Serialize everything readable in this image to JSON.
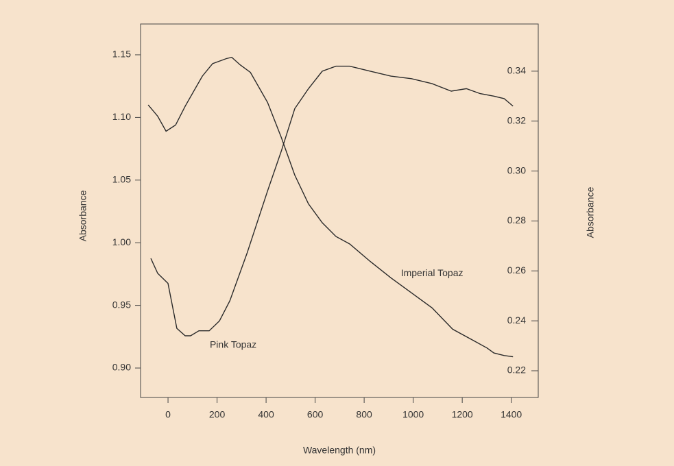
{
  "chart_data": {
    "type": "line",
    "xlabel": "Wavelength (nm)",
    "ylabel": "Absorbance",
    "y2label": "Absorbance",
    "xlim": [
      -112,
      1510
    ],
    "xticks": [
      0,
      200,
      400,
      600,
      800,
      1000,
      1200,
      1400
    ],
    "ylim": [
      0.8765,
      1.1746
    ],
    "yticks": [
      {
        "value": 0.9,
        "label": "0.90"
      },
      0.95,
      {
        "value": 1.0,
        "label": "1.00"
      },
      1.05,
      {
        "value": 1.1,
        "label": "1.10"
      },
      1.15
    ],
    "y2lim": [
      0.2093,
      0.3589
    ],
    "y2ticks": [
      0.22,
      0.24,
      0.26,
      0.28,
      {
        "value": 0.3,
        "label": "0.30"
      },
      0.32,
      0.34
    ],
    "series": [
      {
        "name": "Imperial Topaz",
        "color": "#2a2a2a",
        "axis": "y",
        "x": [
          -81,
          -42,
          -8,
          31,
          70,
          140,
          182,
          238,
          260,
          294,
          336,
          406,
          462,
          517,
          573,
          629,
          685,
          741,
          825,
          909,
          993,
          1077,
          1161,
          1245,
          1301,
          1329,
          1371,
          1407
        ],
        "values": [
          1.11,
          1.101,
          1.089,
          1.094,
          1.109,
          1.133,
          1.143,
          1.147,
          1.148,
          1.142,
          1.136,
          1.112,
          1.084,
          1.054,
          1.031,
          1.016,
          1.005,
          0.999,
          0.985,
          0.972,
          0.96,
          0.948,
          0.931,
          0.922,
          0.916,
          0.912,
          0.91,
          0.909
        ]
      },
      {
        "name": "Pink Topaz",
        "color": "#2a2a2a",
        "axis": "y2",
        "x": [
          -70,
          -42,
          0,
          36,
          70,
          92,
          126,
          168,
          210,
          252,
          322,
          406,
          462,
          517,
          573,
          629,
          685,
          741,
          825,
          909,
          993,
          1077,
          1155,
          1217,
          1273,
          1329,
          1371,
          1407
        ],
        "values": [
          0.265,
          0.259,
          0.255,
          0.237,
          0.234,
          0.234,
          0.236,
          0.236,
          0.24,
          0.248,
          0.267,
          0.292,
          0.308,
          0.325,
          0.333,
          0.34,
          0.342,
          0.342,
          0.34,
          0.338,
          0.337,
          0.335,
          0.332,
          0.333,
          0.331,
          0.33,
          0.329,
          0.326
        ]
      }
    ]
  }
}
